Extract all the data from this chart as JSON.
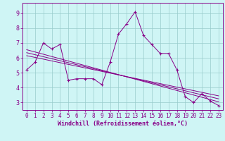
{
  "xlabel": "Windchill (Refroidissement éolien,°C)",
  "background_color": "#cff5f5",
  "line_color": "#880088",
  "grid_color": "#99cccc",
  "xlim": [
    -0.5,
    23.5
  ],
  "ylim": [
    2.5,
    9.7
  ],
  "xticks": [
    0,
    1,
    2,
    3,
    4,
    5,
    6,
    7,
    8,
    9,
    10,
    11,
    12,
    13,
    14,
    15,
    16,
    17,
    18,
    19,
    20,
    21,
    22,
    23
  ],
  "yticks": [
    3,
    4,
    5,
    6,
    7,
    8,
    9
  ],
  "main_x": [
    0,
    1,
    2,
    3,
    4,
    5,
    6,
    7,
    8,
    9,
    10,
    11,
    12,
    13,
    14,
    15,
    16,
    17,
    18,
    19,
    20,
    21,
    22,
    23
  ],
  "main_y": [
    5.2,
    5.7,
    7.0,
    6.6,
    6.9,
    4.5,
    4.6,
    4.6,
    4.6,
    4.2,
    5.7,
    7.6,
    8.3,
    9.1,
    7.5,
    6.9,
    6.3,
    6.3,
    5.2,
    3.4,
    3.0,
    3.6,
    3.1,
    2.8
  ],
  "reg_lines": [
    {
      "x": [
        0,
        23
      ],
      "y": [
        6.55,
        3.05
      ]
    },
    {
      "x": [
        0,
        23
      ],
      "y": [
        6.35,
        3.25
      ]
    },
    {
      "x": [
        0,
        23
      ],
      "y": [
        6.15,
        3.45
      ]
    }
  ],
  "tick_fontsize": 5.5,
  "xlabel_fontsize": 6.0,
  "line_width": 0.7,
  "marker_size": 3.0
}
